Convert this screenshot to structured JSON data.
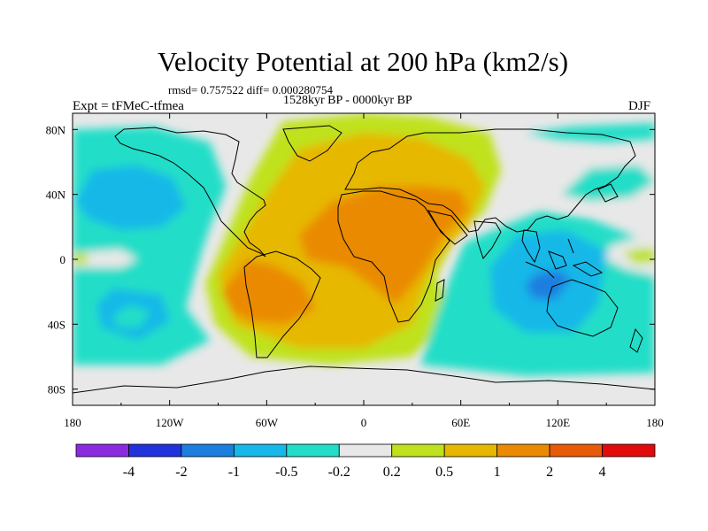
{
  "chart_data": {
    "type": "heatmap",
    "title": "Velocity Potential at 200 hPa (km2/s)",
    "stats_line": "rmsd= 0.757522 diff= 0.000280754",
    "period": "1528kyr BP - 0000kyr BP",
    "left_label": "Expt = tFMeC-tfmea",
    "right_label": "DJF",
    "x_ticks": [
      "180",
      "120W",
      "60W",
      "0",
      "60E",
      "120E",
      "180"
    ],
    "y_ticks": [
      "80N",
      "40N",
      "0",
      "40S",
      "80S"
    ],
    "x_range": [
      -180,
      180
    ],
    "y_range": [
      -90,
      90
    ],
    "colorbar": {
      "colors": [
        "#8a2be2",
        "#2233dd",
        "#1c7fe0",
        "#15b8e8",
        "#22dec8",
        "#e8e8e8",
        "#bfe21c",
        "#e6b800",
        "#ea8a00",
        "#e85a08",
        "#e20a0a"
      ],
      "labels": [
        "-4",
        "-2",
        "-1",
        "-0.5",
        "-0.2",
        "0.2",
        "0.5",
        "1",
        "2",
        "4"
      ]
    },
    "regions": [
      {
        "name": "pacific-negative",
        "level": -0.5,
        "polygon": [
          [
            -180,
            -65
          ],
          [
            -180,
            80
          ],
          [
            -130,
            82
          ],
          [
            -95,
            72
          ],
          [
            -85,
            45
          ],
          [
            -95,
            20
          ],
          [
            -100,
            5
          ],
          [
            -110,
            -30
          ],
          [
            -95,
            -50
          ],
          [
            -125,
            -65
          ]
        ]
      },
      {
        "name": "north-pacific-minimum",
        "level": -1,
        "polygon": [
          [
            -178,
            35
          ],
          [
            -168,
            55
          ],
          [
            -140,
            58
          ],
          [
            -118,
            50
          ],
          [
            -110,
            32
          ],
          [
            -125,
            20
          ],
          [
            -150,
            18
          ],
          [
            -170,
            25
          ]
        ]
      },
      {
        "name": "north-pacific-core",
        "level": -1,
        "polygon": [
          [
            -165,
            42
          ],
          [
            -150,
            50
          ],
          [
            -135,
            45
          ],
          [
            -140,
            33
          ],
          [
            -158,
            33
          ]
        ]
      },
      {
        "name": "south-pacific-minimum",
        "level": -1,
        "polygon": [
          [
            -165,
            -28
          ],
          [
            -155,
            -18
          ],
          [
            -125,
            -22
          ],
          [
            -120,
            -38
          ],
          [
            -140,
            -50
          ],
          [
            -162,
            -42
          ]
        ]
      },
      {
        "name": "south-pacific-core",
        "level": -0.5,
        "polygon": [
          [
            -155,
            -35
          ],
          [
            -145,
            -28
          ],
          [
            -132,
            -32
          ],
          [
            -138,
            -42
          ],
          [
            -152,
            -42
          ]
        ]
      },
      {
        "name": "equatorial-pacific-neutral",
        "level": 0,
        "polygon": [
          [
            -180,
            4
          ],
          [
            -150,
            6
          ],
          [
            -140,
            0
          ],
          [
            -150,
            -5
          ],
          [
            -180,
            -5
          ]
        ]
      },
      {
        "name": "dateline-weak-positive",
        "level": 0.2,
        "polygon": [
          [
            -180,
            3
          ],
          [
            -172,
            4
          ],
          [
            -170,
            0
          ],
          [
            -172,
            -3
          ],
          [
            -180,
            -3
          ]
        ]
      },
      {
        "name": "atlantic-africa-positive",
        "level": 0.2,
        "polygon": [
          [
            -98,
            -15
          ],
          [
            -85,
            15
          ],
          [
            -70,
            50
          ],
          [
            -50,
            85
          ],
          [
            0,
            90
          ],
          [
            40,
            88
          ],
          [
            78,
            78
          ],
          [
            85,
            55
          ],
          [
            75,
            30
          ],
          [
            58,
            15
          ],
          [
            45,
            -10
          ],
          [
            55,
            -35
          ],
          [
            30,
            -60
          ],
          [
            -20,
            -65
          ],
          [
            -70,
            -60
          ],
          [
            -92,
            -40
          ]
        ]
      },
      {
        "name": "atlantic-africa-moderate",
        "level": 0.5,
        "polygon": [
          [
            -90,
            -10
          ],
          [
            -78,
            10
          ],
          [
            -60,
            40
          ],
          [
            -40,
            68
          ],
          [
            0,
            78
          ],
          [
            35,
            75
          ],
          [
            65,
            62
          ],
          [
            75,
            45
          ],
          [
            65,
            20
          ],
          [
            50,
            5
          ],
          [
            38,
            -15
          ],
          [
            30,
            -40
          ],
          [
            0,
            -55
          ],
          [
            -40,
            -55
          ],
          [
            -80,
            -40
          ]
        ]
      },
      {
        "name": "south-america-maximum",
        "level": 1,
        "polygon": [
          [
            -88,
            -20
          ],
          [
            -72,
            0
          ],
          [
            -55,
            -4
          ],
          [
            -38,
            -14
          ],
          [
            -30,
            -30
          ],
          [
            -48,
            -40
          ],
          [
            -70,
            -38
          ],
          [
            -82,
            -32
          ]
        ]
      },
      {
        "name": "africa-maximum",
        "level": 1,
        "polygon": [
          [
            -40,
            15
          ],
          [
            -20,
            35
          ],
          [
            10,
            45
          ],
          [
            40,
            45
          ],
          [
            60,
            42
          ],
          [
            65,
            30
          ],
          [
            50,
            15
          ],
          [
            35,
            -10
          ],
          [
            20,
            -28
          ],
          [
            10,
            -20
          ],
          [
            -10,
            -5
          ],
          [
            -35,
            0
          ]
        ]
      },
      {
        "name": "indo-pacific-negative",
        "level": -0.5,
        "polygon": [
          [
            35,
            -65
          ],
          [
            50,
            -20
          ],
          [
            62,
            10
          ],
          [
            85,
            20
          ],
          [
            110,
            30
          ],
          [
            140,
            25
          ],
          [
            165,
            15
          ],
          [
            180,
            5
          ],
          [
            180,
            -70
          ],
          [
            100,
            -72
          ]
        ]
      },
      {
        "name": "maritime-continent-minimum",
        "level": -1,
        "polygon": [
          [
            78,
            -5
          ],
          [
            95,
            15
          ],
          [
            125,
            18
          ],
          [
            150,
            5
          ],
          [
            145,
            -28
          ],
          [
            130,
            -45
          ],
          [
            100,
            -45
          ],
          [
            80,
            -30
          ]
        ]
      },
      {
        "name": "maritime-continent-core",
        "level": -2,
        "polygon": [
          [
            100,
            -15
          ],
          [
            108,
            -8
          ],
          [
            122,
            -7
          ],
          [
            128,
            -12
          ],
          [
            118,
            -25
          ],
          [
            104,
            -24
          ]
        ]
      },
      {
        "name": "western-pacific-neutral",
        "level": 0,
        "polygon": [
          [
            152,
            8
          ],
          [
            165,
            12
          ],
          [
            180,
            12
          ],
          [
            180,
            -10
          ],
          [
            162,
            -6
          ],
          [
            150,
            0
          ]
        ]
      },
      {
        "name": "western-pacific-positive",
        "level": 0.2,
        "polygon": [
          [
            160,
            4
          ],
          [
            170,
            7
          ],
          [
            180,
            7
          ],
          [
            180,
            -2
          ],
          [
            168,
            -3
          ]
        ]
      },
      {
        "name": "east-asia-neutral",
        "level": 0,
        "polygon": [
          [
            95,
            40
          ],
          [
            120,
            55
          ],
          [
            150,
            62
          ],
          [
            180,
            62
          ],
          [
            180,
            35
          ],
          [
            150,
            30
          ],
          [
            120,
            32
          ]
        ]
      },
      {
        "name": "east-asia-negative",
        "level": -0.5,
        "polygon": [
          [
            122,
            40
          ],
          [
            140,
            56
          ],
          [
            170,
            58
          ],
          [
            180,
            48
          ],
          [
            165,
            38
          ],
          [
            140,
            36
          ]
        ]
      },
      {
        "name": "arctic-negative",
        "level": -0.5,
        "polygon": [
          [
            100,
            78
          ],
          [
            130,
            82
          ],
          [
            180,
            84
          ],
          [
            180,
            74
          ],
          [
            150,
            72
          ],
          [
            120,
            74
          ]
        ]
      }
    ]
  }
}
